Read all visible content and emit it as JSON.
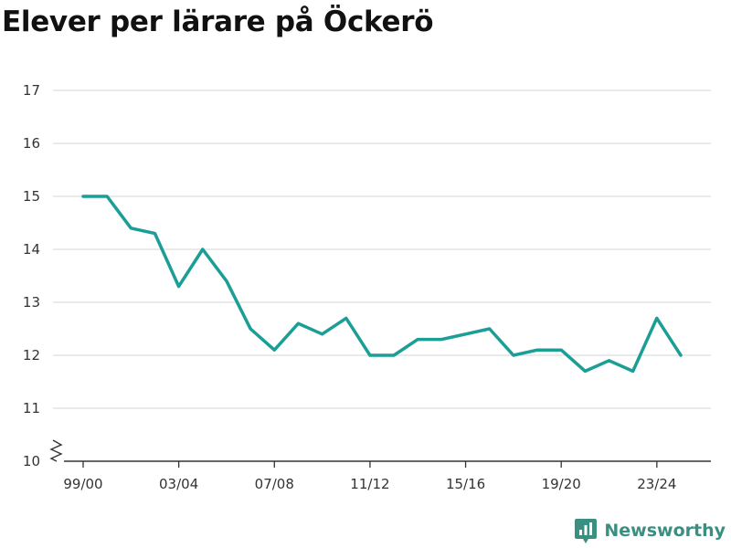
{
  "title": "Elever per lärare på Öckerö",
  "brand": {
    "name": "Newsworthy",
    "icon": "newsworthy-logo-icon",
    "color": "#3a8f82"
  },
  "colors": {
    "line": "#1a9e96",
    "grid": "#dddddd",
    "axis": "#333333"
  },
  "chart_data": {
    "type": "line",
    "title": "Elever per lärare på Öckerö",
    "xlabel": "",
    "ylabel": "",
    "x": [
      "99/00",
      "00/01",
      "01/02",
      "02/03",
      "03/04",
      "04/05",
      "05/06",
      "06/07",
      "07/08",
      "08/09",
      "09/10",
      "10/11",
      "11/12",
      "12/13",
      "13/14",
      "14/15",
      "15/16",
      "16/17",
      "17/18",
      "18/19",
      "19/20",
      "20/21",
      "21/22",
      "22/23",
      "23/24",
      "24/25"
    ],
    "xtick_labels": [
      "99/00",
      "03/04",
      "07/08",
      "11/12",
      "15/16",
      "19/20",
      "23/24"
    ],
    "yticks": [
      10,
      11,
      12,
      13,
      14,
      15,
      16,
      17
    ],
    "ylim": [
      10,
      17
    ],
    "axis_break": true,
    "grid": true,
    "legend": "none",
    "series": [
      {
        "values": [
          15.0,
          15.0,
          14.4,
          14.3,
          13.3,
          14.0,
          13.4,
          12.5,
          12.1,
          12.6,
          12.4,
          12.7,
          12.0,
          12.0,
          12.3,
          12.3,
          12.4,
          12.5,
          12.0,
          12.1,
          12.1,
          11.7,
          11.9,
          11.7,
          12.7,
          12.0
        ]
      }
    ]
  }
}
